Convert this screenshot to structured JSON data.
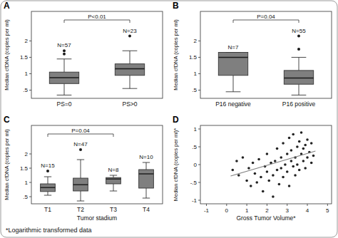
{
  "chart_data": [
    {
      "type": "box",
      "title": "A",
      "ylabel": "Median cfDNA (copies per ml)",
      "categories": [
        "PS=0",
        "PS>0"
      ],
      "boxes": [
        {
          "whisker_low": 0.35,
          "q1": 0.7,
          "median": 0.88,
          "q3": 1.05,
          "whisker_high": 1.45,
          "outliers": [
            1.6,
            1.7
          ]
        },
        {
          "whisker_low": 0.55,
          "q1": 0.95,
          "median": 1.15,
          "q3": 1.3,
          "whisker_high": 1.7,
          "outliers": [
            2.15
          ]
        }
      ],
      "n_labels": [
        "N=57",
        "N=23"
      ],
      "annotations": [
        {
          "text": "P<0.01",
          "between": [
            "PS=0",
            "PS>0"
          ]
        }
      ],
      "ylim": [
        0.25,
        2.9
      ],
      "yticks": [
        {
          "value": 0.5,
          "label": ".5"
        },
        1,
        1.5,
        2
      ],
      "color": "#7f7f7f"
    },
    {
      "type": "box",
      "title": "B",
      "ylabel": "Median cfDNA (copies per ml)",
      "categories": [
        "P16 negative",
        "P16 positive"
      ],
      "boxes": [
        {
          "whisker_low": 0.45,
          "q1": 0.95,
          "median": 1.5,
          "q3": 1.65,
          "whisker_high": 1.65,
          "outliers": []
        },
        {
          "whisker_low": 0.35,
          "q1": 0.68,
          "median": 0.87,
          "q3": 1.1,
          "whisker_high": 1.5,
          "outliers": [
            1.75,
            2.15
          ]
        }
      ],
      "n_labels": [
        "N=7",
        "N=55"
      ],
      "annotations": [
        {
          "text": "P=0.04",
          "between": [
            "P16 negative",
            "P16 positive"
          ]
        }
      ],
      "ylim": [
        0.25,
        2.9
      ],
      "yticks": [
        {
          "value": 0.5,
          "label": ".5"
        },
        1,
        1.5,
        2
      ],
      "color": "#7f7f7f"
    },
    {
      "type": "box",
      "title": "C",
      "ylabel": "Median cfDNA (copies per ml)",
      "xlabel": "Tumor stadium",
      "categories": [
        "T1",
        "T2",
        "T3",
        "T4"
      ],
      "boxes": [
        {
          "whisker_low": 0.55,
          "q1": 0.68,
          "median": 0.82,
          "q3": 0.95,
          "whisker_high": 1.2,
          "outliers": [
            1.4
          ]
        },
        {
          "whisker_low": 0.35,
          "q1": 0.7,
          "median": 0.92,
          "q3": 1.15,
          "whisker_high": 1.8,
          "outliers": [
            2.15
          ]
        },
        {
          "whisker_low": 0.7,
          "q1": 0.95,
          "median": 1.12,
          "q3": 1.17,
          "whisker_high": 1.25,
          "outliers": []
        },
        {
          "whisker_low": 0.45,
          "q1": 0.8,
          "median": 1.3,
          "q3": 1.45,
          "whisker_high": 1.7,
          "outliers": []
        }
      ],
      "n_labels": [
        "N=15",
        "N=47",
        "N=8",
        "N=10"
      ],
      "annotations": [
        {
          "text": "P=0.04",
          "between": [
            "T1",
            "T3"
          ]
        }
      ],
      "ylim": [
        0.25,
        3.0
      ],
      "yticks": [
        {
          "value": 0.5,
          "label": ".5"
        },
        1,
        1.5,
        2
      ],
      "color": "#7f7f7f"
    },
    {
      "type": "scatter",
      "title": "D",
      "ylabel": "Median cfDNA (copies per ml)*",
      "xlabel": "Gross Tumor Volume*",
      "x": [
        0.3,
        0.5,
        0.6,
        0.8,
        1.0,
        1.1,
        1.2,
        1.3,
        1.4,
        1.5,
        1.6,
        1.7,
        1.8,
        1.9,
        2.0,
        2.0,
        2.1,
        2.2,
        2.3,
        2.3,
        2.4,
        2.5,
        2.5,
        2.6,
        2.7,
        2.7,
        2.8,
        2.8,
        2.9,
        3.0,
        3.0,
        3.1,
        3.1,
        3.2,
        3.2,
        3.3,
        3.3,
        3.4,
        3.4,
        3.5,
        3.5,
        3.6,
        3.6,
        3.7,
        3.7,
        3.8,
        3.8,
        3.9,
        3.9,
        4.0,
        4.0,
        4.1,
        4.2,
        4.2,
        4.3
      ],
      "values": [
        -0.15,
        0.1,
        -0.3,
        0.2,
        -0.45,
        -0.1,
        -0.6,
        0.05,
        -0.25,
        -0.5,
        0.15,
        -0.35,
        -0.75,
        -0.05,
        -0.2,
        0.3,
        -0.45,
        0.05,
        -0.9,
        -0.3,
        0.1,
        -0.15,
        0.45,
        -0.55,
        0.2,
        -0.1,
        0.6,
        -0.35,
        0,
        0.3,
        -0.2,
        0.75,
        -0.6,
        0.1,
        0.4,
        -0.05,
        0.85,
        0.2,
        -0.3,
        0.5,
        0,
        0.65,
        -0.15,
        0.3,
        0.9,
        0.1,
        0.45,
        -0.1,
        0.55,
        0.2,
        0.7,
        0.35,
        0.05,
        0.6,
        0.25
      ],
      "color": "#222222",
      "trend": {
        "x": [
          0.2,
          4.4
        ],
        "values": [
          -0.32,
          0.38
        ],
        "color": "#7f7f7f"
      },
      "xlim": [
        -1.3,
        5.2
      ],
      "xticks": [
        -1,
        0,
        1,
        2,
        3,
        4,
        5
      ],
      "ylim": [
        -1.1,
        1.1
      ],
      "yticks": [
        -1,
        {
          "value": -0.5,
          "label": "-.5"
        },
        0,
        {
          "value": 0.5,
          "label": ".5"
        },
        1
      ]
    }
  ],
  "footnote": "*Logarithmic transformed data"
}
